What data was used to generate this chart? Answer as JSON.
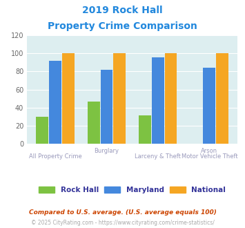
{
  "title_line1": "2019 Rock Hall",
  "title_line2": "Property Crime Comparison",
  "rock_hall": [
    30,
    47,
    31,
    0
  ],
  "maryland": [
    92,
    82,
    96,
    84
  ],
  "national": [
    100,
    100,
    100,
    100
  ],
  "color_rockhall": "#7dc242",
  "color_maryland": "#4488dd",
  "color_national": "#f5a623",
  "ylim": [
    0,
    120
  ],
  "yticks": [
    0,
    20,
    40,
    60,
    80,
    100,
    120
  ],
  "bg_color": "#ddeef0",
  "legend_labels": [
    "Rock Hall",
    "Maryland",
    "National"
  ],
  "footnote1": "Compared to U.S. average. (U.S. average equals 100)",
  "footnote2": "© 2025 CityRating.com - https://www.cityrating.com/crime-statistics/",
  "title_color": "#2288dd",
  "label_color": "#9999bb",
  "footnote1_color": "#cc4400",
  "footnote2_color": "#aaaaaa",
  "legend_text_color": "#333399",
  "top_labels": [
    "",
    "Burglary",
    "",
    "Arson"
  ],
  "bot_labels": [
    "All Property Crime",
    "",
    "Larceny & Theft",
    "Motor Vehicle Theft"
  ]
}
